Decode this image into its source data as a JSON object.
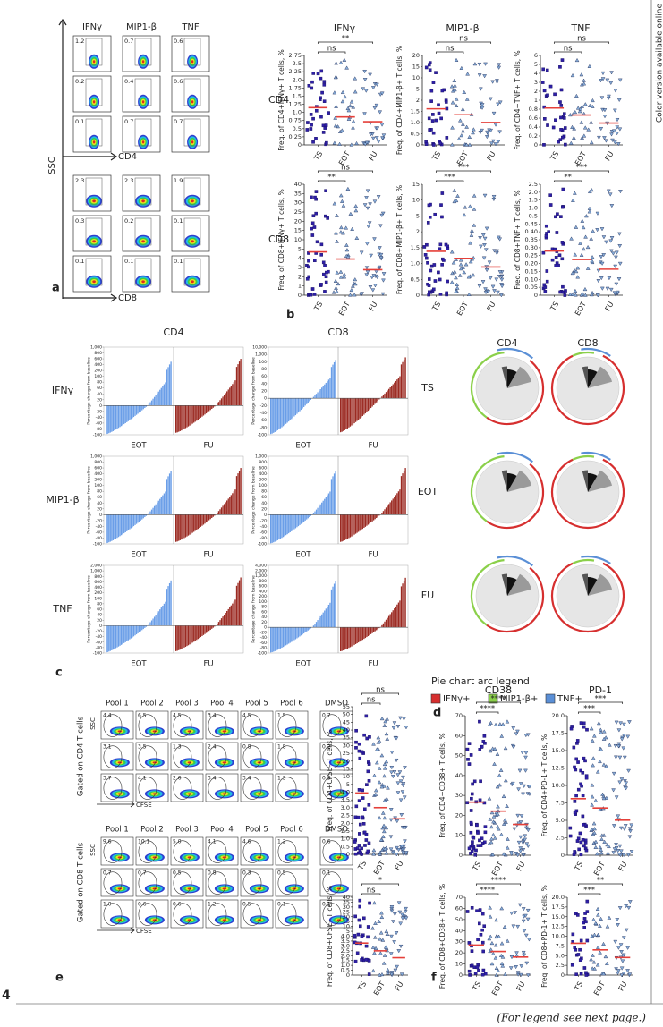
{
  "side_note": "Color version available online",
  "figure_number": "4",
  "footer": "(For legend see next page.)",
  "groups": [
    "TS",
    "EOT",
    "FU"
  ],
  "panel_a": {
    "label": "a",
    "columns": [
      "IFNγ",
      "MIP1-β",
      "TNF"
    ],
    "y_axis": "SSC",
    "x_axes": [
      "CD4",
      "CD8"
    ],
    "gates": [
      [
        "1.2",
        "0.7",
        "0.6"
      ],
      [
        "0.2",
        "0.4",
        "0.6"
      ],
      [
        "0.1",
        "0.7",
        "0.7"
      ],
      [
        "2.3",
        "2.3",
        "1.9"
      ],
      [
        "0.3",
        "0.2",
        "0.1"
      ],
      [
        "0.1",
        "0.1",
        "0.1"
      ]
    ]
  },
  "panel_b": {
    "label": "b",
    "titles": [
      "IFNγ",
      "MIP1-β",
      "TNF"
    ],
    "row_labels": [
      "CD4",
      "CD8"
    ],
    "plots": [
      {
        "y_label": "Freq. of CD4+IFNγ+ T cells, %",
        "y_ticks": [
          "0",
          "0.25",
          "0.5",
          "0.75",
          "1.0",
          "1.25",
          "1.5",
          "1.75",
          "2.0",
          "2.25",
          "2.5",
          "2.75"
        ],
        "significance": [
          "ns",
          "**"
        ]
      },
      {
        "y_label": "Freq. of CD4+MIP1-β+ T cells, %",
        "y_ticks": [
          "0",
          "0.5",
          "1.0",
          "1.5",
          "2",
          "5",
          "10",
          "15",
          "20"
        ],
        "significance": [
          "ns",
          "ns"
        ]
      },
      {
        "y_label": "Freq. of CD4+TNF+ T cells, %",
        "y_ticks": [
          "0",
          "0.2",
          "0.4",
          "0.6",
          "0.8",
          "1",
          "2",
          "3",
          "4",
          "5",
          "6"
        ],
        "significance": [
          "ns",
          "ns"
        ]
      },
      {
        "y_label": "Freq. of CD8+IFNγ+ T cells, %",
        "y_ticks": [
          "0",
          "1",
          "2",
          "3",
          "4",
          "5",
          "10",
          "15",
          "20",
          "25",
          "30",
          "35",
          "40"
        ],
        "significance": [
          "**",
          "ns"
        ]
      },
      {
        "y_label": "Freq. of CD8+MIP1-β+ T cells, %",
        "y_ticks": [
          "0",
          "0.5",
          "1.0",
          "1.5",
          "2",
          "5",
          "10",
          "15"
        ],
        "significance": [
          "***",
          "***"
        ]
      },
      {
        "y_label": "Freq. of CD8+TNF+ T cells, %",
        "y_ticks": [
          "0",
          "0.05",
          "0.10",
          "0.15",
          "0.20",
          "0.25",
          "0.30",
          "0.35",
          "0.40",
          "0.45",
          "0.5",
          "1.0",
          "1.5",
          "2.0",
          "2.5"
        ],
        "significance": [
          "**",
          "***"
        ]
      }
    ]
  },
  "panel_c": {
    "label": "c",
    "columns": [
      "CD4",
      "CD8"
    ],
    "rows": [
      "IFNγ",
      "MIP1-β",
      "TNF"
    ],
    "x_labels": [
      "EOT",
      "FU"
    ],
    "y_axis": "Percentage change from baseline",
    "plots": [
      [
        {
          "y_ticks": [
            "1,000",
            "800",
            "600",
            "400",
            "200",
            "100",
            "80",
            "60",
            "40",
            "20",
            "0",
            "-20",
            "-40",
            "-60",
            "-80",
            "-100"
          ]
        },
        {
          "y_ticks": [
            "10,000",
            "1,000",
            "100",
            "80",
            "60",
            "40",
            "20",
            "0",
            "-20",
            "-40",
            "-60",
            "-80",
            "-100"
          ]
        }
      ],
      [
        {
          "y_ticks": [
            "1,000",
            "800",
            "600",
            "400",
            "200",
            "100",
            "80",
            "60",
            "40",
            "20",
            "0",
            "-20",
            "-40",
            "-60",
            "-80",
            "-100"
          ]
        },
        {
          "y_ticks": [
            "1,000",
            "800",
            "600",
            "400",
            "200",
            "100",
            "80",
            "60",
            "40",
            "20",
            "0",
            "-20",
            "-40",
            "-60",
            "-80",
            "-100"
          ]
        }
      ],
      [
        {
          "y_ticks": [
            "2,000",
            "1,000",
            "800",
            "600",
            "400",
            "200",
            "100",
            "80",
            "60",
            "40",
            "20",
            "0",
            "-20",
            "-40",
            "-60",
            "-80",
            "-100"
          ]
        },
        {
          "y_ticks": [
            "4,000",
            "2,000",
            "1,000",
            "800",
            "600",
            "400",
            "200",
            "100",
            "80",
            "60",
            "40",
            "20",
            "0",
            "-20",
            "-40",
            "-60",
            "-80",
            "-100"
          ]
        }
      ]
    ]
  },
  "panel_d": {
    "label": "d",
    "columns": [
      "CD4",
      "CD8"
    ],
    "rows": [
      "TS",
      "EOT",
      "FU"
    ],
    "legend_title": "Pie chart arc legend",
    "legend": [
      "IFNγ+",
      "MIP1-β+",
      "TNF+"
    ]
  },
  "panel_e": {
    "label": "e",
    "columns": [
      "Pool 1",
      "Pool 2",
      "Pool 3",
      "Pool 4",
      "Pool 5",
      "Pool 6",
      "DMSO"
    ],
    "rows": [
      "Gated on CD4 T cells",
      "Gated on CD8 T cells"
    ],
    "y_axis": "SSC",
    "x_axis": "CFSE",
    "gates": [
      [
        [
          "4.4",
          "6.5",
          "4.5",
          "3.4",
          "4.5",
          "1.5",
          "0.7"
        ],
        [
          "3.1",
          "3.5",
          "1.3",
          "2.4",
          "0.8",
          "1.8",
          "0.2"
        ],
        [
          "3.7",
          "4.1",
          "2.6",
          "3.4",
          "3.4",
          "1.3",
          "0.3"
        ]
      ],
      [
        [
          "9.6",
          "10.1",
          "5.0",
          "4.1",
          "4.6",
          "1.2",
          "0.6"
        ],
        [
          "0.7",
          "0.7",
          "0.5",
          "0.8",
          "0.3",
          "0.5",
          "0.1"
        ],
        [
          "1.0",
          "0.6",
          "0.6",
          "1.2",
          "0.5",
          "0.1",
          "0.1"
        ]
      ]
    ],
    "plots": [
      {
        "y_label": "Freq. of CD4+CFSE– T cells, %",
        "y_ticks": [
          "0",
          "0.5",
          "1.0",
          "1.5",
          "2.0",
          "2.5",
          "3.0",
          "3.5",
          "4.0",
          "5",
          "10",
          "15",
          "20",
          "25",
          "30",
          "35",
          "40",
          "45",
          "50",
          "55"
        ],
        "significance": [
          "ns",
          "ns"
        ]
      },
      {
        "y_label": "Freq. of CD8+CFSE– T cells, %",
        "y_ticks": [
          "0",
          "0.5",
          "1.0",
          "1.5",
          "2.0",
          "2.5",
          "3.0",
          "3.5",
          "4.0",
          "5",
          "10",
          "15",
          "20",
          "25",
          "30",
          "35",
          "40"
        ],
        "significance": [
          "ns",
          "*"
        ]
      }
    ]
  },
  "panel_f": {
    "label": "f",
    "titles": [
      "CD38",
      "PD-1"
    ],
    "plots": [
      {
        "y_label": "Freq. of CD4+CD38+ T cells, %",
        "y_ticks": [
          "0",
          "10",
          "20",
          "30",
          "40",
          "50",
          "60",
          "70"
        ],
        "significance": [
          "****",
          "****"
        ]
      },
      {
        "y_label": "Freq. of CD4+PD-1+ T cells, %",
        "y_ticks": [
          "0",
          "2.5",
          "5.0",
          "7.5",
          "10.0",
          "12.5",
          "15.0",
          "17.5",
          "20.0"
        ],
        "significance": [
          "***",
          "***"
        ]
      },
      {
        "y_label": "Freq. of CD8+CD38+ T cells, %",
        "y_ticks": [
          "0",
          "10",
          "20",
          "30",
          "40",
          "50",
          "60",
          "70"
        ],
        "significance": [
          "****",
          "****"
        ]
      },
      {
        "y_label": "Freq. of CD8+PD-1+ T cells, %",
        "y_ticks": [
          "0",
          "2.5",
          "5.0",
          "7.5",
          "10.0",
          "12.5",
          "15.0",
          "17.5",
          "20.0"
        ],
        "significance": [
          "***",
          "**"
        ]
      }
    ]
  }
}
